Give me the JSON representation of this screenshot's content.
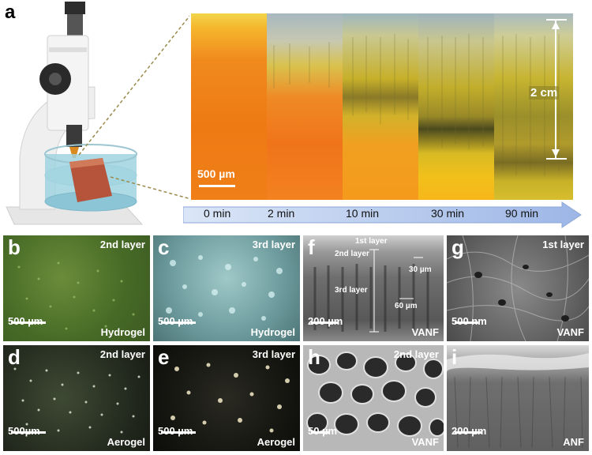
{
  "panel_a": {
    "label": "a",
    "times": [
      "0 min",
      "2 min",
      "10 min",
      "30 min",
      "90 min"
    ],
    "scale": "500 µm",
    "height_label": "2 cm"
  },
  "panels": {
    "b": {
      "label": "b",
      "layer": "2nd layer",
      "sample": "Hydrogel",
      "scale": "500 µm"
    },
    "c": {
      "label": "c",
      "layer": "3rd layer",
      "sample": "Hydrogel",
      "scale": "500 µm"
    },
    "d": {
      "label": "d",
      "layer": "2nd layer",
      "sample": "Aerogel",
      "scale": "500µm"
    },
    "e": {
      "label": "e",
      "layer": "3rd layer",
      "sample": "Aerogel",
      "scale": "500 µm"
    },
    "f": {
      "label": "f",
      "layer1": "1st layer",
      "layer2": "2nd layer",
      "layer3": "3rd layer",
      "d30": "30 µm",
      "d60": "60 µm",
      "sample": "VANF",
      "scale": "200 µm"
    },
    "g": {
      "label": "g",
      "layer": "1st layer",
      "sample": "VANF",
      "scale": "500 nm"
    },
    "h": {
      "label": "h",
      "layer": "2nd layer",
      "sample": "VANF",
      "scale": "50 µm"
    },
    "i": {
      "label": "i",
      "sample": "ANF",
      "scale": "200 µm"
    }
  }
}
